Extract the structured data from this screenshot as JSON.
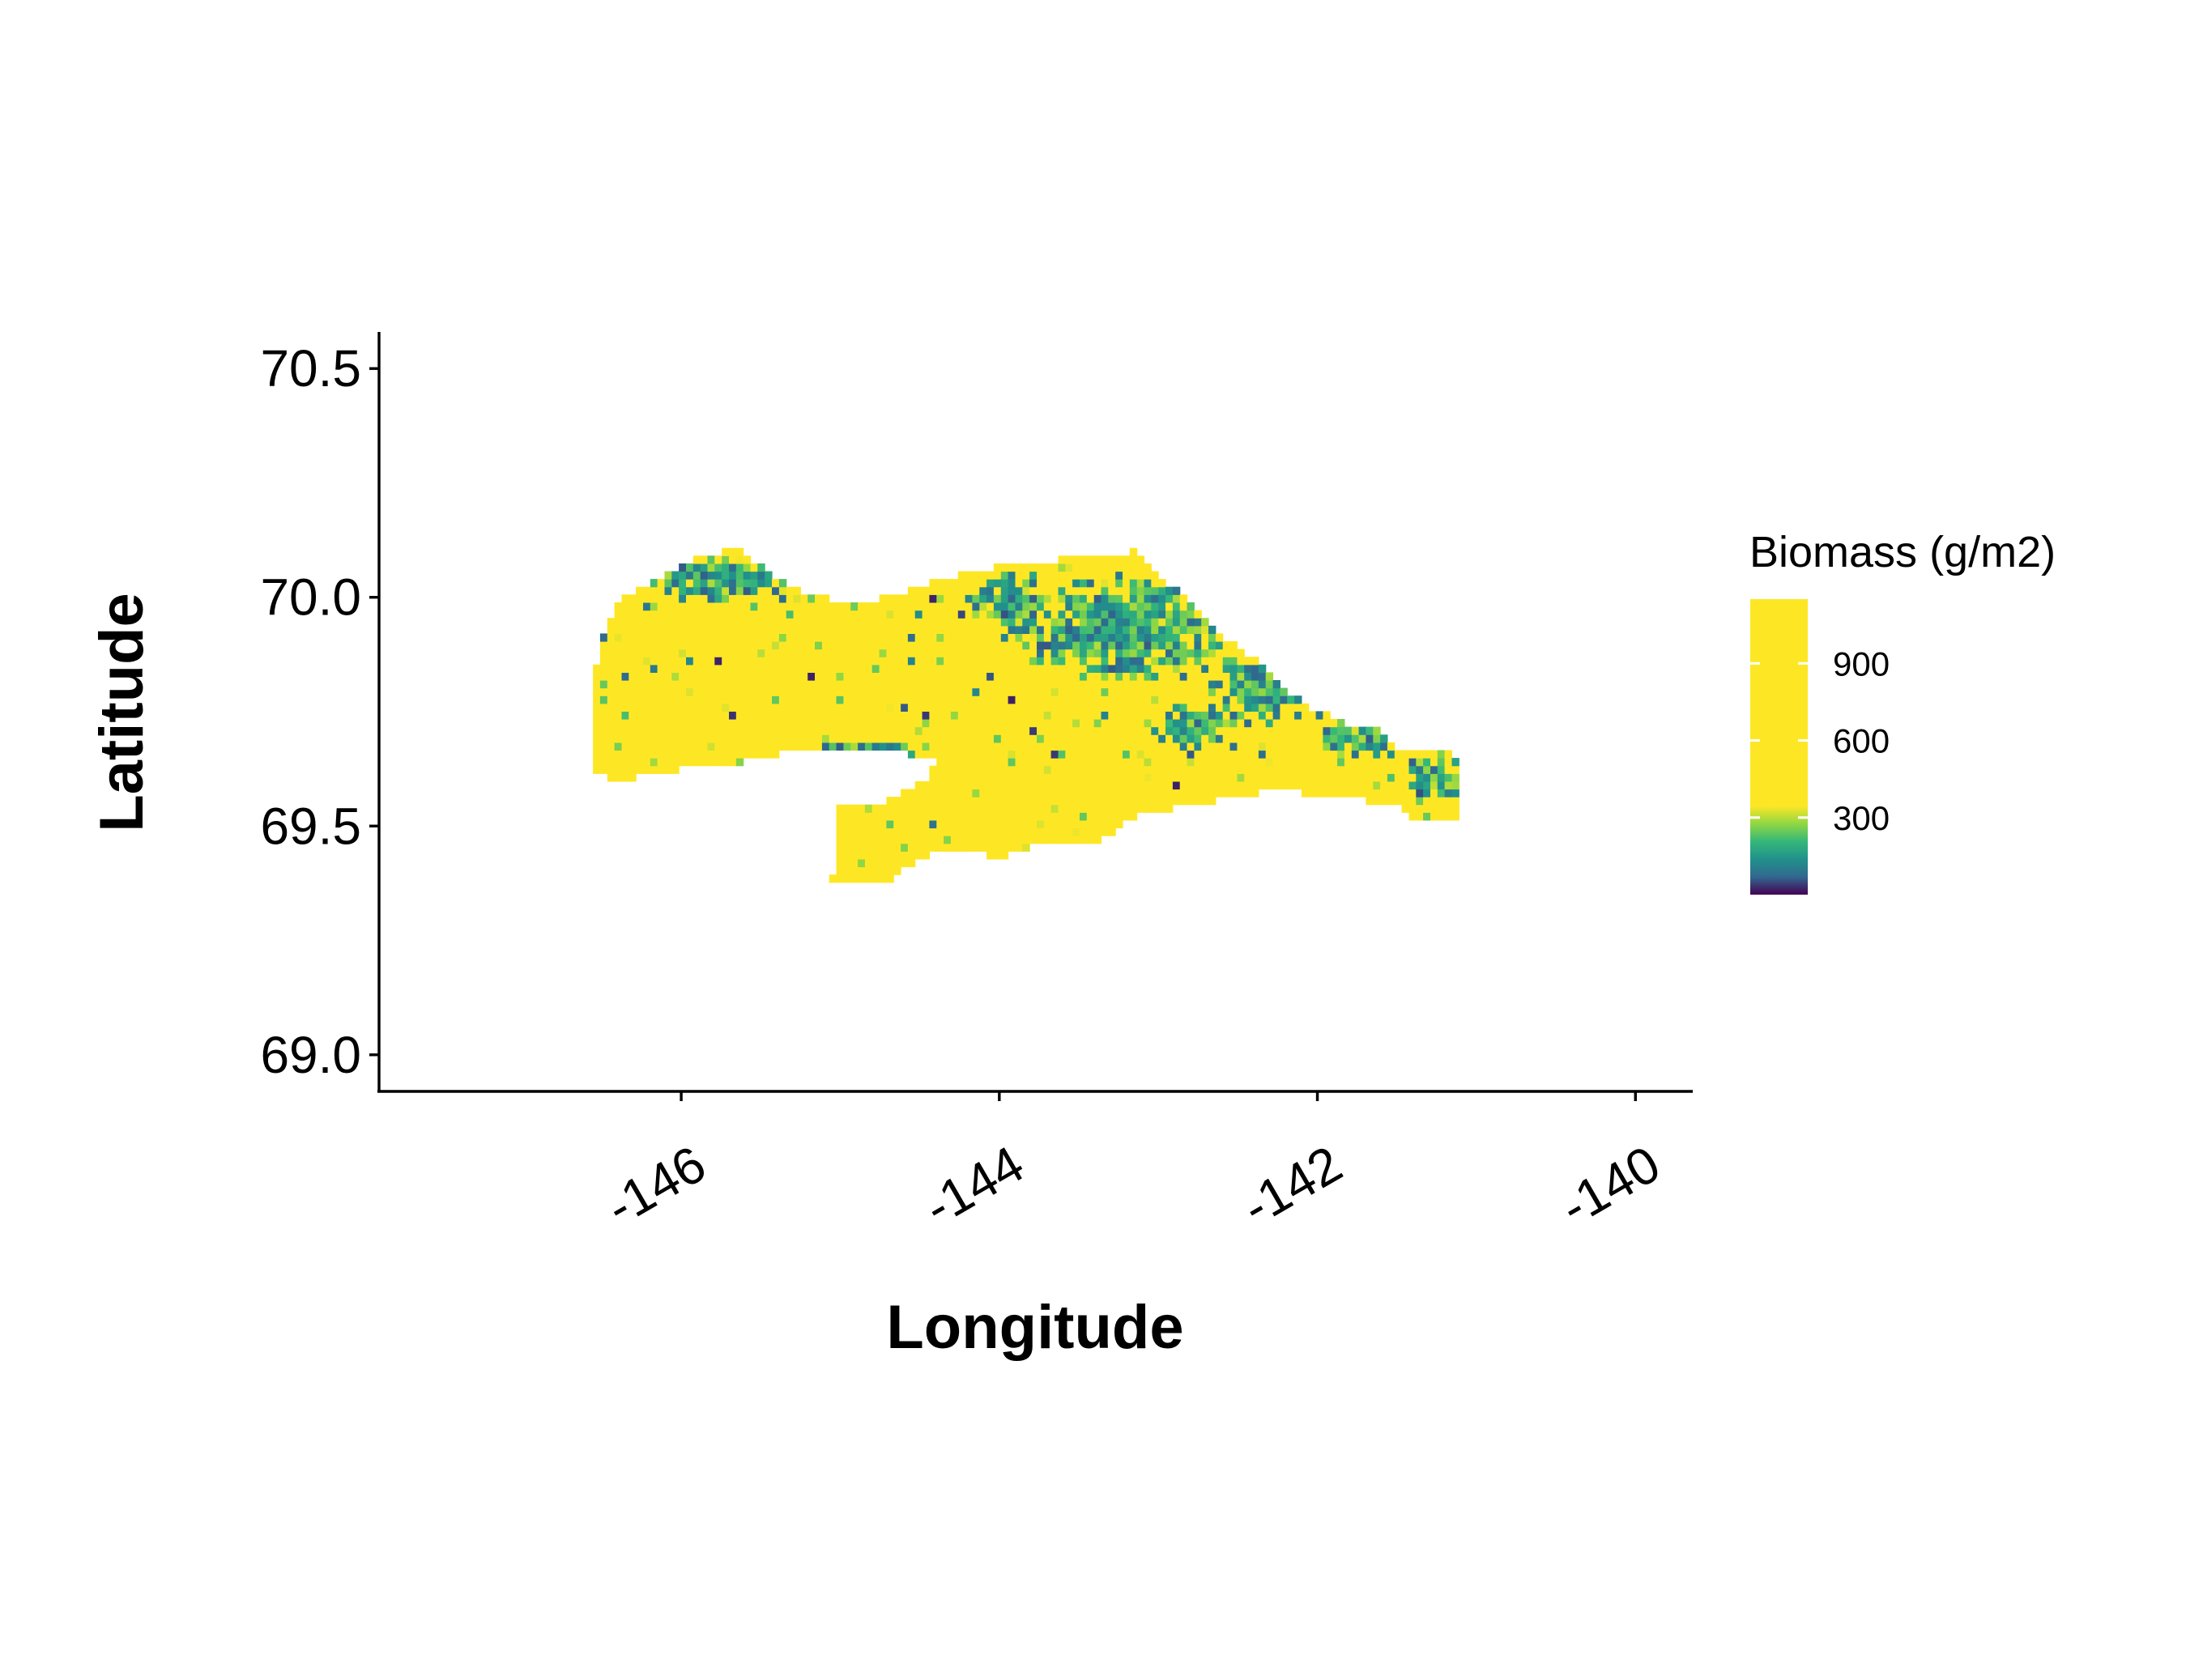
{
  "chart_data": {
    "type": "heatmap",
    "title": "",
    "xlabel": "Longitude",
    "ylabel": "Latitude",
    "xlim": [
      -147.9,
      -139.65
    ],
    "ylim": [
      68.92,
      70.58
    ],
    "x_ticks": [
      -146,
      -144,
      -142,
      -140
    ],
    "x_tick_labels": [
      "-146",
      "-144",
      "-142",
      "-140"
    ],
    "y_ticks": [
      69.0,
      69.5,
      70.0,
      70.5
    ],
    "y_tick_labels": [
      "69.0",
      "69.5",
      "70.0",
      "70.5"
    ],
    "grid": false,
    "legend": {
      "title": "Biomass (g/m2)",
      "placement": "right",
      "range": [
        0,
        1150
      ],
      "breaks": [
        300,
        600,
        900
      ],
      "break_labels": [
        "300",
        "600",
        "900"
      ],
      "colormap": [
        "#440154",
        "#31688e",
        "#21918c",
        "#35b779",
        "#90d743",
        "#fde725"
      ],
      "colormap_positions": [
        0,
        0.06,
        0.12,
        0.18,
        0.24,
        0.3
      ]
    },
    "region_outline": [
      [
        -146.55,
        69.62
      ],
      [
        -146.4,
        69.6
      ],
      [
        -146.1,
        69.62
      ],
      [
        -145.6,
        69.64
      ],
      [
        -145.2,
        69.67
      ],
      [
        -144.6,
        69.66
      ],
      [
        -144.4,
        69.64
      ],
      [
        -144.45,
        69.6
      ],
      [
        -144.75,
        69.55
      ],
      [
        -145.0,
        69.55
      ],
      [
        -145.05,
        69.38
      ],
      [
        -144.75,
        69.37
      ],
      [
        -144.5,
        69.43
      ],
      [
        -144.25,
        69.45
      ],
      [
        -144.0,
        69.43
      ],
      [
        -143.85,
        69.45
      ],
      [
        -143.6,
        69.47
      ],
      [
        -143.35,
        69.47
      ],
      [
        -143.15,
        69.52
      ],
      [
        -142.75,
        69.55
      ],
      [
        -142.25,
        69.58
      ],
      [
        -141.85,
        69.56
      ],
      [
        -141.5,
        69.55
      ],
      [
        -141.4,
        69.51
      ],
      [
        -141.1,
        69.51
      ],
      [
        -141.1,
        69.65
      ],
      [
        -141.3,
        69.67
      ],
      [
        -141.45,
        69.66
      ],
      [
        -141.6,
        69.71
      ],
      [
        -141.8,
        69.72
      ],
      [
        -142.1,
        69.77
      ],
      [
        -142.35,
        69.85
      ],
      [
        -142.6,
        69.92
      ],
      [
        -142.9,
        70.02
      ],
      [
        -143.15,
        70.1
      ],
      [
        -143.5,
        70.09
      ],
      [
        -143.9,
        70.07
      ],
      [
        -144.15,
        70.06
      ],
      [
        -144.45,
        70.03
      ],
      [
        -144.9,
        69.98
      ],
      [
        -145.3,
        70.02
      ],
      [
        -145.65,
        70.11
      ],
      [
        -145.95,
        70.08
      ],
      [
        -146.15,
        70.04
      ],
      [
        -146.4,
        69.99
      ],
      [
        -146.5,
        69.91
      ],
      [
        -146.55,
        69.83
      ]
    ],
    "low_biomass_zones": [
      {
        "lon": -143.2,
        "lat": 69.93,
        "rlon": 0.75,
        "rlat": 0.12,
        "value": 200
      },
      {
        "lon": -142.35,
        "lat": 69.8,
        "rlon": 0.35,
        "rlat": 0.08,
        "value": 160
      },
      {
        "lon": -141.75,
        "lat": 69.7,
        "rlon": 0.35,
        "rlat": 0.06,
        "value": 180
      },
      {
        "lon": -141.25,
        "lat": 69.6,
        "rlon": 0.18,
        "rlat": 0.06,
        "value": 150
      },
      {
        "lon": -145.75,
        "lat": 70.04,
        "rlon": 0.5,
        "rlat": 0.06,
        "value": 180
      },
      {
        "lon": -143.9,
        "lat": 69.98,
        "rlon": 0.3,
        "rlat": 0.08,
        "value": 250
      },
      {
        "lon": -142.8,
        "lat": 69.72,
        "rlon": 0.3,
        "rlat": 0.05,
        "value": 300
      },
      {
        "lon": -144.8,
        "lat": 69.67,
        "rlon": 0.35,
        "rlat": 0.02,
        "value": 120
      }
    ]
  }
}
